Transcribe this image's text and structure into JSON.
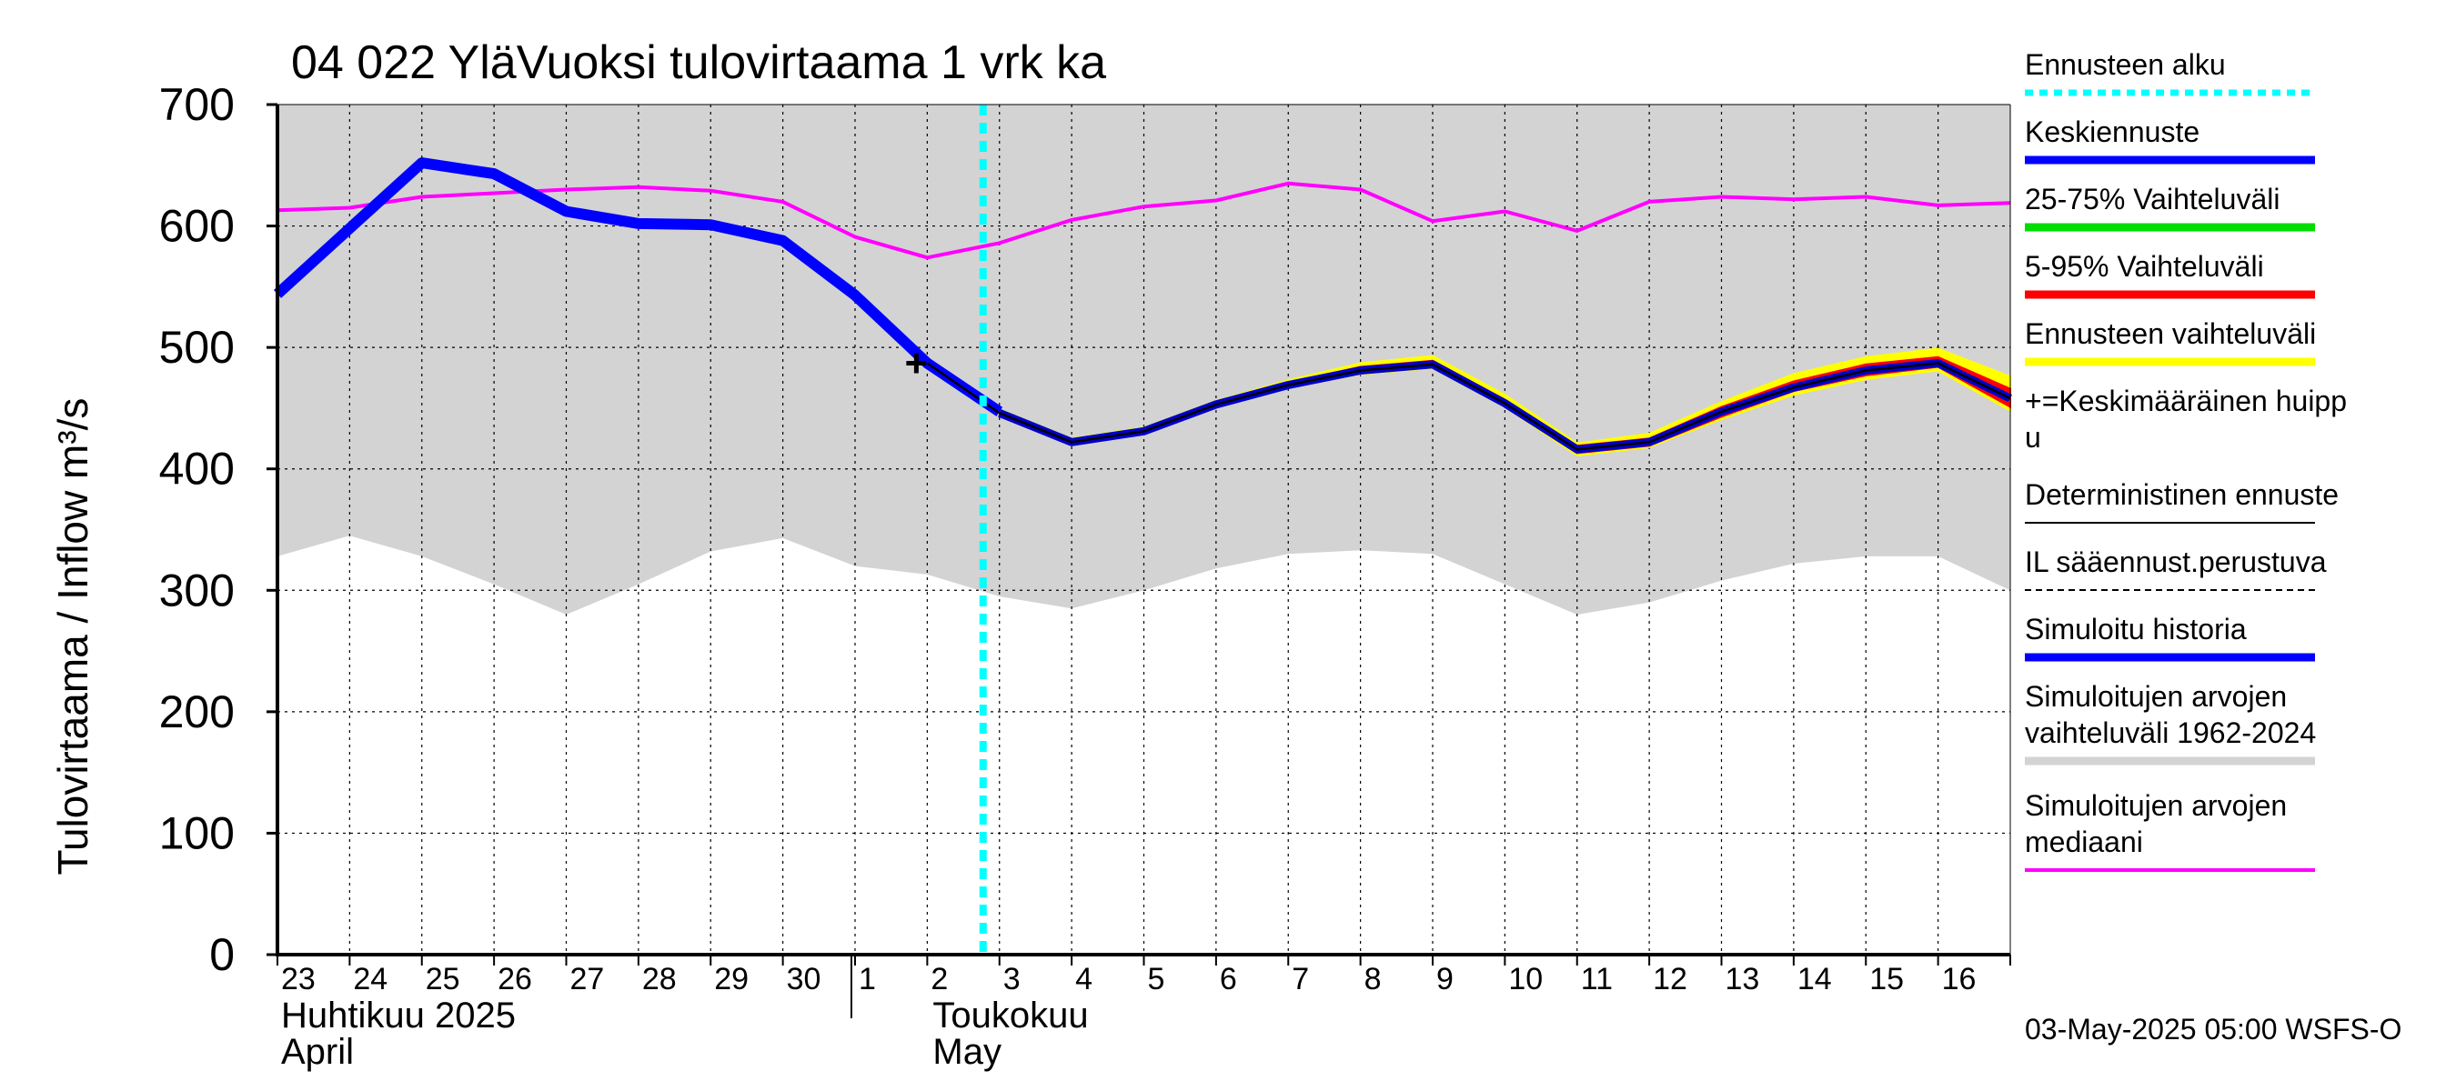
{
  "chart_data": {
    "type": "line",
    "title": "04 022 YläVuoksi tulovirtaama 1 vrk ka",
    "ylabel": "Tulovirtaama / Inflow",
    "yunit": "m³/s",
    "ylim": [
      0,
      700
    ],
    "yticks": [
      "0",
      "100",
      "200",
      "300",
      "400",
      "500",
      "600",
      "700"
    ],
    "x_dates": [
      "2025-04-23",
      "2025-04-24",
      "2025-04-25",
      "2025-04-26",
      "2025-04-27",
      "2025-04-28",
      "2025-04-29",
      "2025-04-30",
      "2025-05-01",
      "2025-05-02",
      "2025-05-03",
      "2025-05-04",
      "2025-05-05",
      "2025-05-06",
      "2025-05-07",
      "2025-05-08",
      "2025-05-09",
      "2025-05-10",
      "2025-05-11",
      "2025-05-12",
      "2025-05-13",
      "2025-05-14",
      "2025-05-15",
      "2025-05-16",
      "2025-05-17"
    ],
    "xtick_labels": [
      "23",
      "24",
      "25",
      "26",
      "27",
      "28",
      "29",
      "30",
      "1",
      "2",
      "3",
      "4",
      "5",
      "6",
      "7",
      "8",
      "9",
      "10",
      "11",
      "12",
      "13",
      "14",
      "15",
      "16"
    ],
    "month_labels": [
      {
        "line1": "Huhtikuu  2025",
        "line2": "April"
      },
      {
        "line1": "Toukokuu",
        "line2": "May"
      }
    ],
    "forecast_start": "2025-05-03",
    "grid": true,
    "legend_position": "right",
    "series": [
      {
        "name": "Simuloitujen arvojen vaihteluväli 1962-2024",
        "kind": "band",
        "color": "#d3d3d3",
        "upper": [
          700,
          700,
          700,
          700,
          700,
          700,
          700,
          700,
          700,
          700,
          700,
          700,
          700,
          700,
          700,
          700,
          700,
          700,
          700,
          700,
          700,
          700,
          700,
          700,
          700
        ],
        "lower": [
          328,
          345,
          328,
          305,
          280,
          305,
          332,
          343,
          320,
          313,
          295,
          285,
          300,
          318,
          330,
          333,
          330,
          305,
          280,
          290,
          308,
          322,
          328,
          328,
          300
        ]
      },
      {
        "name": "Ennusteen vaihteluväli",
        "kind": "band",
        "color": "#ffff00",
        "x_start_index": 10,
        "upper": [
          449,
          425,
          434,
          456,
          473,
          487,
          493,
          461,
          421,
          429,
          455,
          478,
          492,
          499,
          476
        ],
        "lower": [
          445,
          421,
          430,
          452,
          467,
          478,
          483,
          451,
          411,
          418,
          441,
          461,
          474,
          481,
          448
        ]
      },
      {
        "name": "5-95% Vaihteluväli",
        "kind": "band",
        "color": "#ff0000",
        "x_start_index": 10,
        "upper": [
          448,
          424,
          433,
          455,
          471,
          484,
          489,
          457,
          419,
          425,
          451,
          472,
          486,
          492,
          466
        ],
        "lower": [
          446,
          422,
          431,
          453,
          468,
          479,
          484,
          452,
          413,
          419,
          443,
          464,
          477,
          484,
          451
        ]
      },
      {
        "name": "25-75% Vaihteluväli",
        "kind": "band",
        "color": "#00dd00",
        "x_start_index": 10,
        "upper": [
          447,
          423,
          432,
          454,
          470,
          482,
          487,
          455,
          417,
          423,
          448,
          469,
          483,
          489,
          461
        ],
        "lower": [
          446,
          422,
          431,
          453,
          469,
          480,
          485,
          453,
          415,
          421,
          446,
          466,
          480,
          486,
          455
        ]
      },
      {
        "name": "Simuloitujen arvojen mediaani",
        "kind": "line",
        "color": "#ff00ff",
        "values": [
          613,
          615,
          624,
          627,
          630,
          632,
          629,
          620,
          591,
          574,
          586,
          605,
          616,
          621,
          635,
          630,
          604,
          612,
          596,
          620,
          624,
          622,
          624,
          617,
          619
        ]
      },
      {
        "name": "Simuloitu historia",
        "kind": "line",
        "color": "#0000ff",
        "x_end_index": 10,
        "values": [
          544,
          598,
          652,
          643,
          612,
          602,
          601,
          588,
          543,
          487,
          447
        ]
      },
      {
        "name": "Keskiennuste",
        "kind": "line",
        "color": "#0000cc",
        "x_start_index": 10,
        "values": [
          446,
          422,
          431,
          453,
          469,
          481,
          486,
          454,
          416,
          422,
          447,
          467,
          481,
          487,
          458
        ]
      },
      {
        "name": "Deterministinen ennuste",
        "kind": "line",
        "color": "#000000",
        "x_start_index": 9,
        "values": [
          487,
          446,
          422,
          431,
          453,
          469,
          481,
          486,
          454,
          416,
          422,
          447,
          467,
          481,
          487,
          458
        ]
      }
    ],
    "peak_marker": {
      "date": "2025-05-02",
      "value": 487
    }
  },
  "legend": {
    "items": [
      {
        "label": "Ennusteen alku",
        "color": "#00ffff",
        "style": "dotted"
      },
      {
        "label": "Keskiennuste",
        "color": "#0000ff",
        "style": "thick"
      },
      {
        "label": "25-75% Vaihteluväli",
        "color": "#00dd00",
        "style": "thick"
      },
      {
        "label": "5-95% Vaihteluväli",
        "color": "#ff0000",
        "style": "thick"
      },
      {
        "label": "Ennusteen vaihteluväli",
        "color": "#ffff00",
        "style": "thick"
      },
      {
        "label": "+=Keskimääräinen huipp",
        "label2": "u",
        "color": "#000000",
        "style": "none"
      },
      {
        "label": "Deterministinen ennuste",
        "color": "#000000",
        "style": "thin"
      },
      {
        "label": "IL sääennust.perustuva",
        "color": "#000000",
        "style": "dashed"
      },
      {
        "label": "Simuloitu historia",
        "color": "#0000ff",
        "style": "thick"
      },
      {
        "label": "Simuloitujen arvojen",
        "label2": "vaihteluväli 1962-2024",
        "color": "#d3d3d3",
        "style": "thick"
      },
      {
        "label": "Simuloitujen arvojen",
        "label2": "mediaani",
        "color": "#ff00ff",
        "style": "medium"
      }
    ]
  },
  "footer": "03-May-2025 05:00 WSFS-O"
}
